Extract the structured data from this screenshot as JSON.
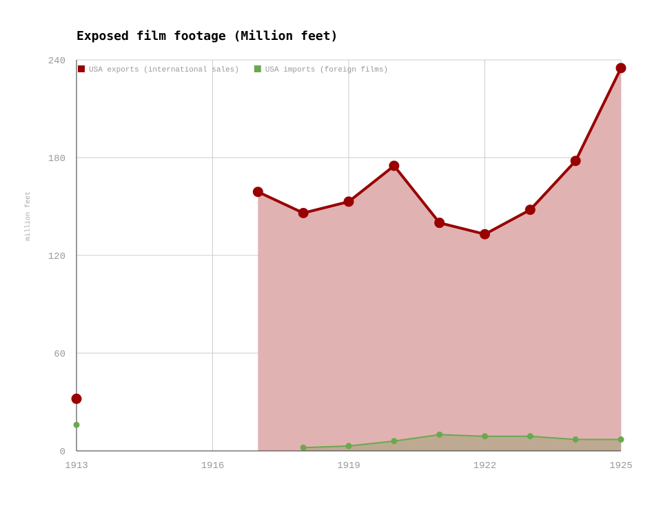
{
  "chart_data": {
    "type": "area",
    "title": "Exposed film footage (Million feet)",
    "xlabel": "",
    "ylabel": "million feet",
    "xlim": [
      1913,
      1925
    ],
    "ylim": [
      0,
      240
    ],
    "x_ticks": [
      "1913",
      "1916",
      "1919",
      "1922",
      "1925"
    ],
    "y_ticks": [
      "0",
      "60",
      "120",
      "180",
      "240"
    ],
    "grid": true,
    "legend_position": "top-left",
    "series": [
      {
        "name": "USA exports (international sales)",
        "color": "#990000",
        "fill": "#e0b2b2",
        "points": [
          {
            "x": 1913,
            "y": 32
          },
          {
            "x": 1917,
            "y": 159
          },
          {
            "x": 1918,
            "y": 146
          },
          {
            "x": 1919,
            "y": 153
          },
          {
            "x": 1920,
            "y": 175
          },
          {
            "x": 1921,
            "y": 140
          },
          {
            "x": 1922,
            "y": 133
          },
          {
            "x": 1923,
            "y": 148
          },
          {
            "x": 1924,
            "y": 178
          },
          {
            "x": 1925,
            "y": 235
          }
        ]
      },
      {
        "name": "USA imports (foreign films)",
        "color": "#6aa84f",
        "fill": "#baa88e",
        "points": [
          {
            "x": 1913,
            "y": 16
          },
          {
            "x": 1918,
            "y": 2
          },
          {
            "x": 1919,
            "y": 3
          },
          {
            "x": 1920,
            "y": 6
          },
          {
            "x": 1921,
            "y": 10
          },
          {
            "x": 1922,
            "y": 9
          },
          {
            "x": 1923,
            "y": 9
          },
          {
            "x": 1924,
            "y": 7
          },
          {
            "x": 1925,
            "y": 7
          }
        ]
      }
    ]
  }
}
